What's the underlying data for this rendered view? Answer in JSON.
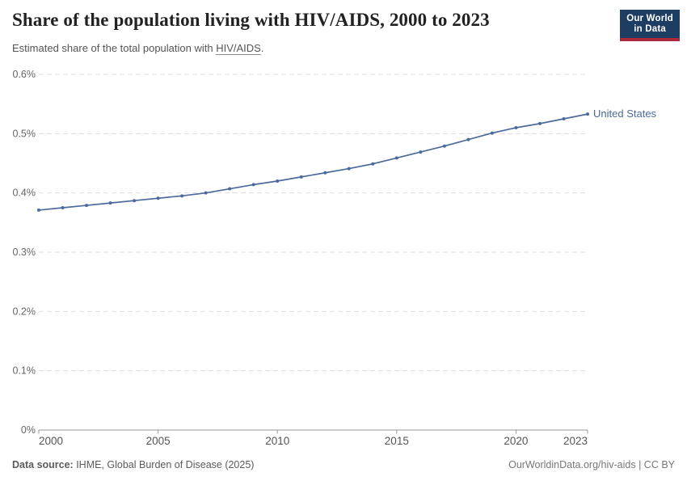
{
  "header": {
    "title": "Share of the population living with HIV/AIDS, 2000 to 2023",
    "subtitle_prefix": "Estimated share of the total population with ",
    "subtitle_term": "HIV/AIDS",
    "subtitle_suffix": "."
  },
  "logo": {
    "line1": "Our World",
    "line2": "in Data"
  },
  "footer": {
    "source_label": "Data source:",
    "source_text": " IHME, Global Burden of Disease (2025)",
    "credit": "OurWorldinData.org/hiv-aids | CC BY"
  },
  "colors": {
    "background": "#ffffff",
    "title_text": "#222222",
    "subtitle_text": "#555555",
    "footer_text": "#5b5b5b",
    "credit_text": "#777777",
    "grid": "#dddddd",
    "axis": "#999999",
    "ytick_text": "#666666",
    "xtick_text": "#555555",
    "line": "#4C6A9C",
    "logo_navy": "#1d3d63",
    "logo_red": "#aa2839"
  },
  "chart_data": {
    "type": "line",
    "title": "Share of the population living with HIV/AIDS, 2000 to 2023",
    "subtitle": "Estimated share of the total population with HIV/AIDS.",
    "xlabel": "",
    "ylabel": "",
    "unit": "%",
    "grid": "horizontal-dashed",
    "legend_position": "end-of-line-label",
    "xlim": [
      2000,
      2023
    ],
    "ylim": [
      0,
      0.6
    ],
    "x": [
      2000,
      2001,
      2002,
      2003,
      2004,
      2005,
      2006,
      2007,
      2008,
      2009,
      2010,
      2011,
      2012,
      2013,
      2014,
      2015,
      2016,
      2017,
      2018,
      2019,
      2020,
      2021,
      2022,
      2023
    ],
    "series": [
      {
        "name": "United States",
        "values": [
          0.371,
          0.375,
          0.379,
          0.383,
          0.387,
          0.391,
          0.395,
          0.4,
          0.407,
          0.414,
          0.42,
          0.427,
          0.434,
          0.441,
          0.449,
          0.459,
          0.469,
          0.479,
          0.49,
          0.501,
          0.51,
          0.517,
          0.525,
          0.533
        ]
      }
    ],
    "ytick_values": [
      0,
      0.1,
      0.2,
      0.3,
      0.4,
      0.5,
      0.6
    ],
    "ytick_labels": [
      "0%",
      "0.1%",
      "0.2%",
      "0.3%",
      "0.4%",
      "0.5%",
      "0.6%"
    ],
    "xtick_values": [
      2000,
      2005,
      2010,
      2015,
      2020,
      2023
    ],
    "xtick_labels": [
      "2000",
      "2005",
      "2010",
      "2015",
      "2020",
      "2023"
    ]
  }
}
